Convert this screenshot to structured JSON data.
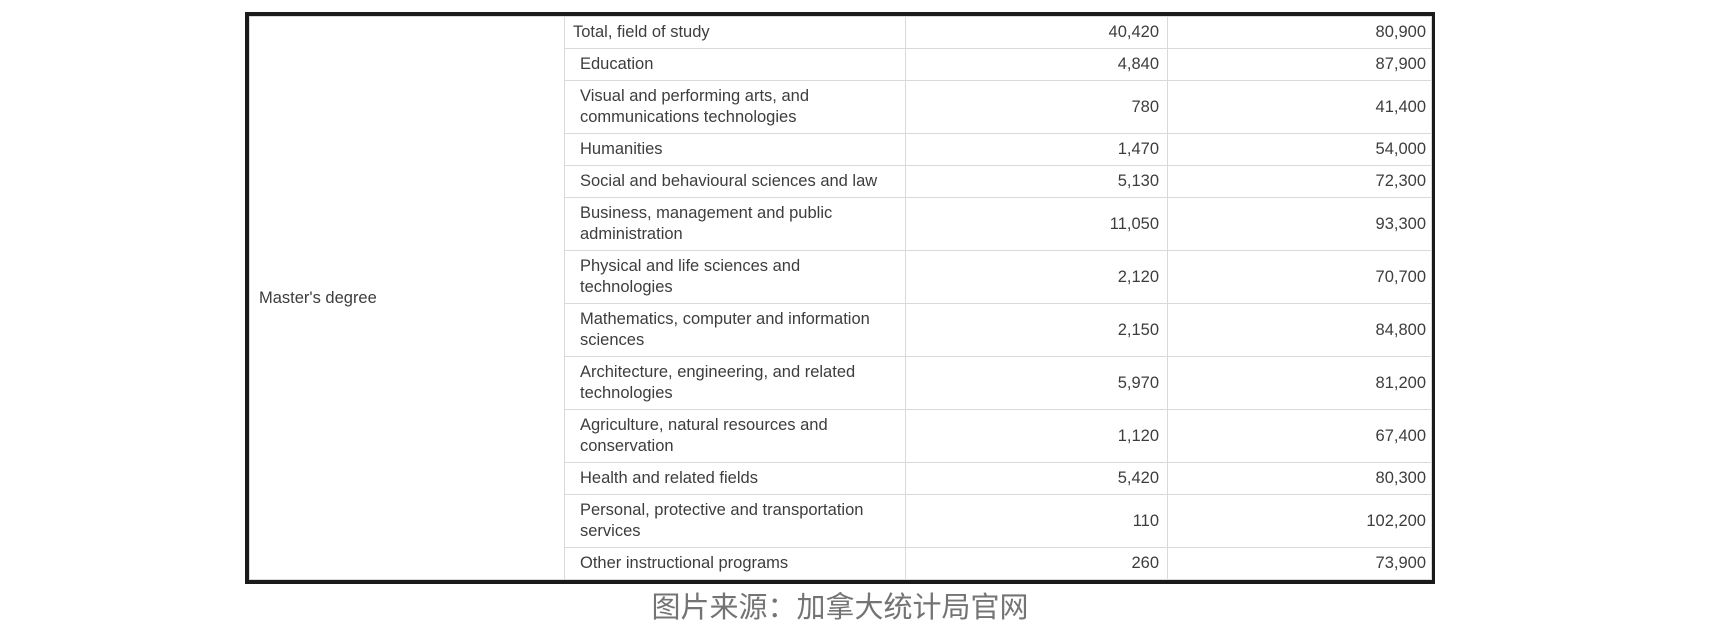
{
  "table": {
    "group_label": "Master's degree",
    "rows": [
      {
        "field": "Total, field of study",
        "count": "40,420",
        "salary": "80,900"
      },
      {
        "field": "Education",
        "count": "4,840",
        "salary": "87,900"
      },
      {
        "field": "Visual and performing arts, and communications technologies",
        "count": "780",
        "salary": "41,400"
      },
      {
        "field": "Humanities",
        "count": "1,470",
        "salary": "54,000"
      },
      {
        "field": "Social and behavioural sciences and law",
        "count": "5,130",
        "salary": "72,300"
      },
      {
        "field": "Business, management and public administration",
        "count": "11,050",
        "salary": "93,300"
      },
      {
        "field": "Physical and life sciences and technologies",
        "count": "2,120",
        "salary": "70,700"
      },
      {
        "field": "Mathematics, computer and information sciences",
        "count": "2,150",
        "salary": "84,800"
      },
      {
        "field": "Architecture, engineering, and related technologies",
        "count": "5,970",
        "salary": "81,200"
      },
      {
        "field": "Agriculture, natural resources and conservation",
        "count": "1,120",
        "salary": "67,400"
      },
      {
        "field": "Health and related fields",
        "count": "5,420",
        "salary": "80,300"
      },
      {
        "field": "Personal, protective and transportation services",
        "count": "110",
        "salary": "102,200"
      },
      {
        "field": "Other instructional programs",
        "count": "260",
        "salary": "73,900"
      }
    ]
  },
  "caption": {
    "text": "图片来源：加拿大统计局官网"
  },
  "colors": {
    "outer_border": "#1b1b1b",
    "grid_line": "#d9d9d9",
    "table_text": "#3d3d3d",
    "caption_text": "#747474",
    "background": "#ffffff"
  },
  "chart_data": {
    "type": "table",
    "group_label": "Master's degree",
    "categories": [
      "Total, field of study",
      "Education",
      "Visual and performing arts, and communications technologies",
      "Humanities",
      "Social and behavioural sciences and law",
      "Business, management and public administration",
      "Physical and life sciences and technologies",
      "Mathematics, computer and information sciences",
      "Architecture, engineering, and related technologies",
      "Agriculture, natural resources and conservation",
      "Health and related fields",
      "Personal, protective and transportation services",
      "Other instructional programs"
    ],
    "series": [
      {
        "name": "column_3_values",
        "values": [
          40420,
          4840,
          780,
          1470,
          5130,
          11050,
          2120,
          2150,
          5970,
          1120,
          5420,
          110,
          260
        ]
      },
      {
        "name": "column_4_values",
        "values": [
          80900,
          87900,
          41400,
          54000,
          72300,
          93300,
          70700,
          84800,
          81200,
          67400,
          80300,
          102200,
          73900
        ]
      }
    ],
    "caption": "图片来源：加拿大统计局官网"
  }
}
